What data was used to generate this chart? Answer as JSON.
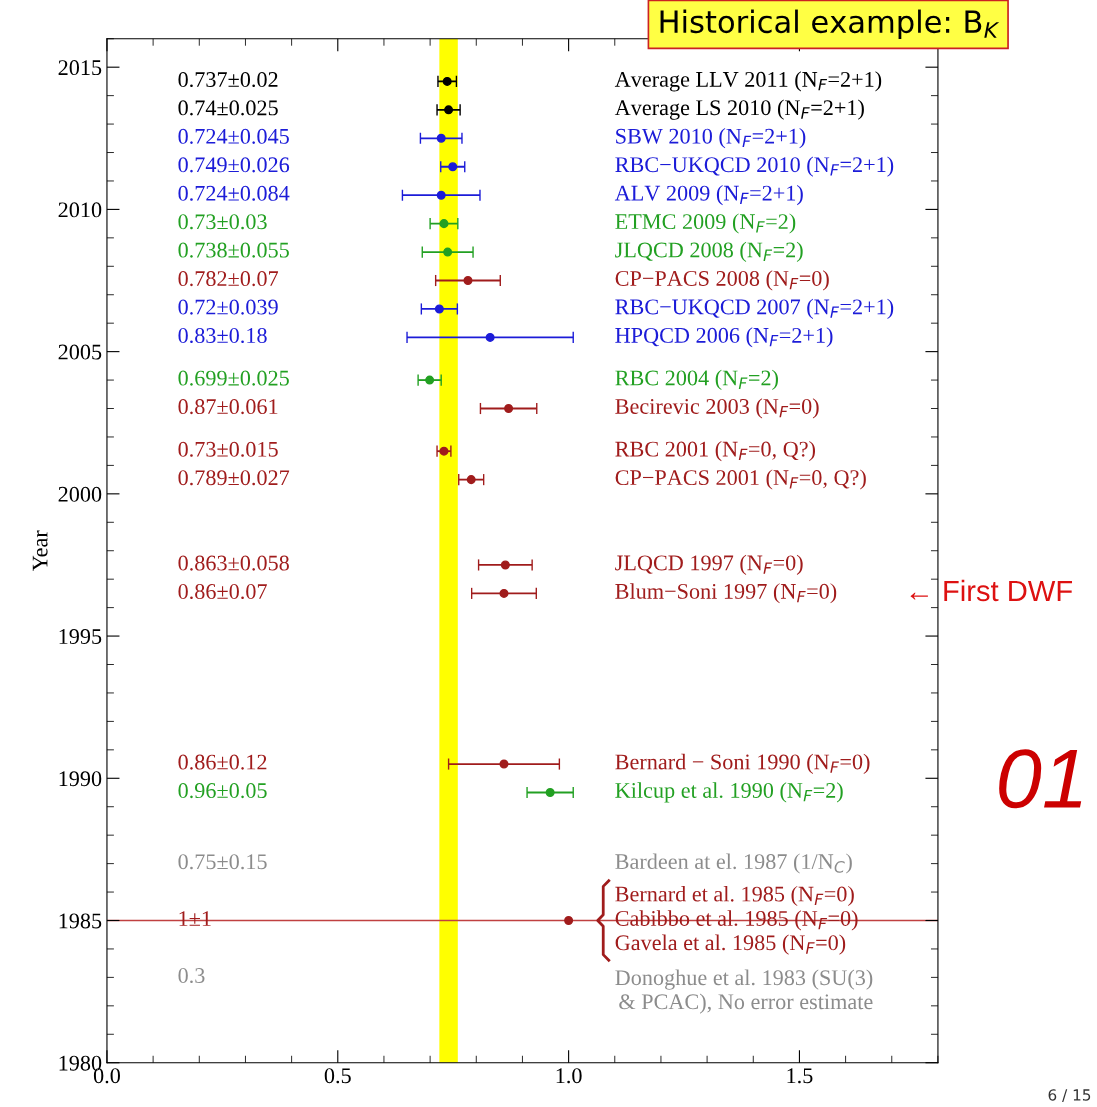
{
  "chart_data": {
    "type": "scatter",
    "title": "Historical example: B$_{K}$",
    "ylabel": "Year",
    "xlim": [
      0,
      1.8
    ],
    "xticks": [
      {
        "value": 0,
        "label": "0.0"
      },
      0.5,
      {
        "value": 1,
        "label": "1.0"
      },
      1.5
    ],
    "ylim": [
      1980,
      2016
    ],
    "yticks": [
      1980,
      1985,
      1990,
      1995,
      2000,
      2005,
      2010,
      2015
    ],
    "marker": "circle",
    "grid": false,
    "legend": false,
    "series": [
      {
        "color": "#000000",
        "x": [
          0.737,
          0.74
        ],
        "values": [
          2014.5,
          2013.5
        ],
        "xerrors": [
          0.02,
          0.025
        ]
      },
      {
        "color": "#1c1cd8",
        "x": [
          0.724,
          0.749,
          0.724,
          0.72,
          0.83
        ],
        "values": [
          2012.5,
          2011.5,
          2010.5,
          2006.5,
          2005.5
        ],
        "xerrors": [
          0.045,
          0.026,
          0.084,
          0.039,
          0.18
        ]
      },
      {
        "color": "#22a022",
        "x": [
          0.73,
          0.738,
          0.699,
          0.96
        ],
        "values": [
          2009.5,
          2008.5,
          2004,
          1989.5
        ],
        "xerrors": [
          0.03,
          0.055,
          0.025,
          0.05
        ]
      },
      {
        "color": "#a01c1c",
        "x": [
          0.782,
          0.87,
          0.73,
          0.789,
          0.863,
          0.86,
          0.86,
          1
        ],
        "values": [
          2007.5,
          2003,
          2001.5,
          2000.5,
          1997.5,
          1996.5,
          1990.5,
          1985
        ],
        "xerrors": [
          0.07,
          0.061,
          0.015,
          0.027,
          0.058,
          0.07,
          0.12,
          null
        ]
      }
    ],
    "bands": [
      {
        "axis": "x",
        "from": 0.72,
        "to": 0.76,
        "color": "#ffff00"
      }
    ],
    "ref_lines": [
      {
        "axis": "y",
        "value": 1985,
        "color": "#c04040"
      }
    ],
    "annotations": [
      "0.737±0.02",
      "Average LLV 2011 (N$_{F}$=2+1)",
      "0.74±0.025",
      "Average LS 2010 (N$_{F}$=2+1)",
      "0.724±0.045",
      "SBW 2010 (N$_{F}$=2+1)",
      "0.749±0.026",
      "RBC−UKQCD 2010 (N$_{F}$=2+1)",
      "0.724±0.084",
      "ALV 2009 (N$_{F}$=2+1)",
      "0.73±0.03",
      "ETMC 2009 (N$_{F}$=2)",
      "0.738±0.055",
      "JLQCD 2008 (N$_{F}$=2)",
      "0.782±0.07",
      "CP−PACS 2008 (N$_{F}$=0)",
      "0.72±0.039",
      "RBC−UKQCD 2007 (N$_{F}$=2+1)",
      "0.83±0.18",
      "HPQCD 2006 (N$_{F}$=2+1)",
      "0.699±0.025",
      "RBC 2004 (N$_{F}$=2)",
      "0.87±0.061",
      "Becirevic 2003 (N$_{F}$=0)",
      "0.73±0.015",
      "RBC 2001 (N$_{F}$=0, Q?)",
      "0.789±0.027",
      "CP−PACS 2001 (N$_{F}$=0, Q?)",
      "0.863±0.058",
      "JLQCD 1997 (N$_{F}$=0)",
      "0.86±0.07",
      "Blum−Soni 1997 (N$_{F}$=0)",
      "← First DWF",
      "0.86±0.12",
      "Bernard − Soni 1990 (N$_{F}$=0)",
      "0.96±0.05",
      "Kilcup et al. 1990 (N$_{F}$=2)",
      "0.75±0.15",
      "Bardeen at el. 1987 (1/N$_{C}$)",
      "1±1",
      "Bernard et al. 1985 (N$_{F}$=0)\nCabibbo et al. 1985 (N$_{F}$=0)\nGavela et al. 1985 (N$_{F}$=0)",
      "0.3",
      "Donoghue et al. 1983 (SU(3)\n& PCAC), No error estimate",
      "01",
      "6 / 15"
    ]
  }
}
